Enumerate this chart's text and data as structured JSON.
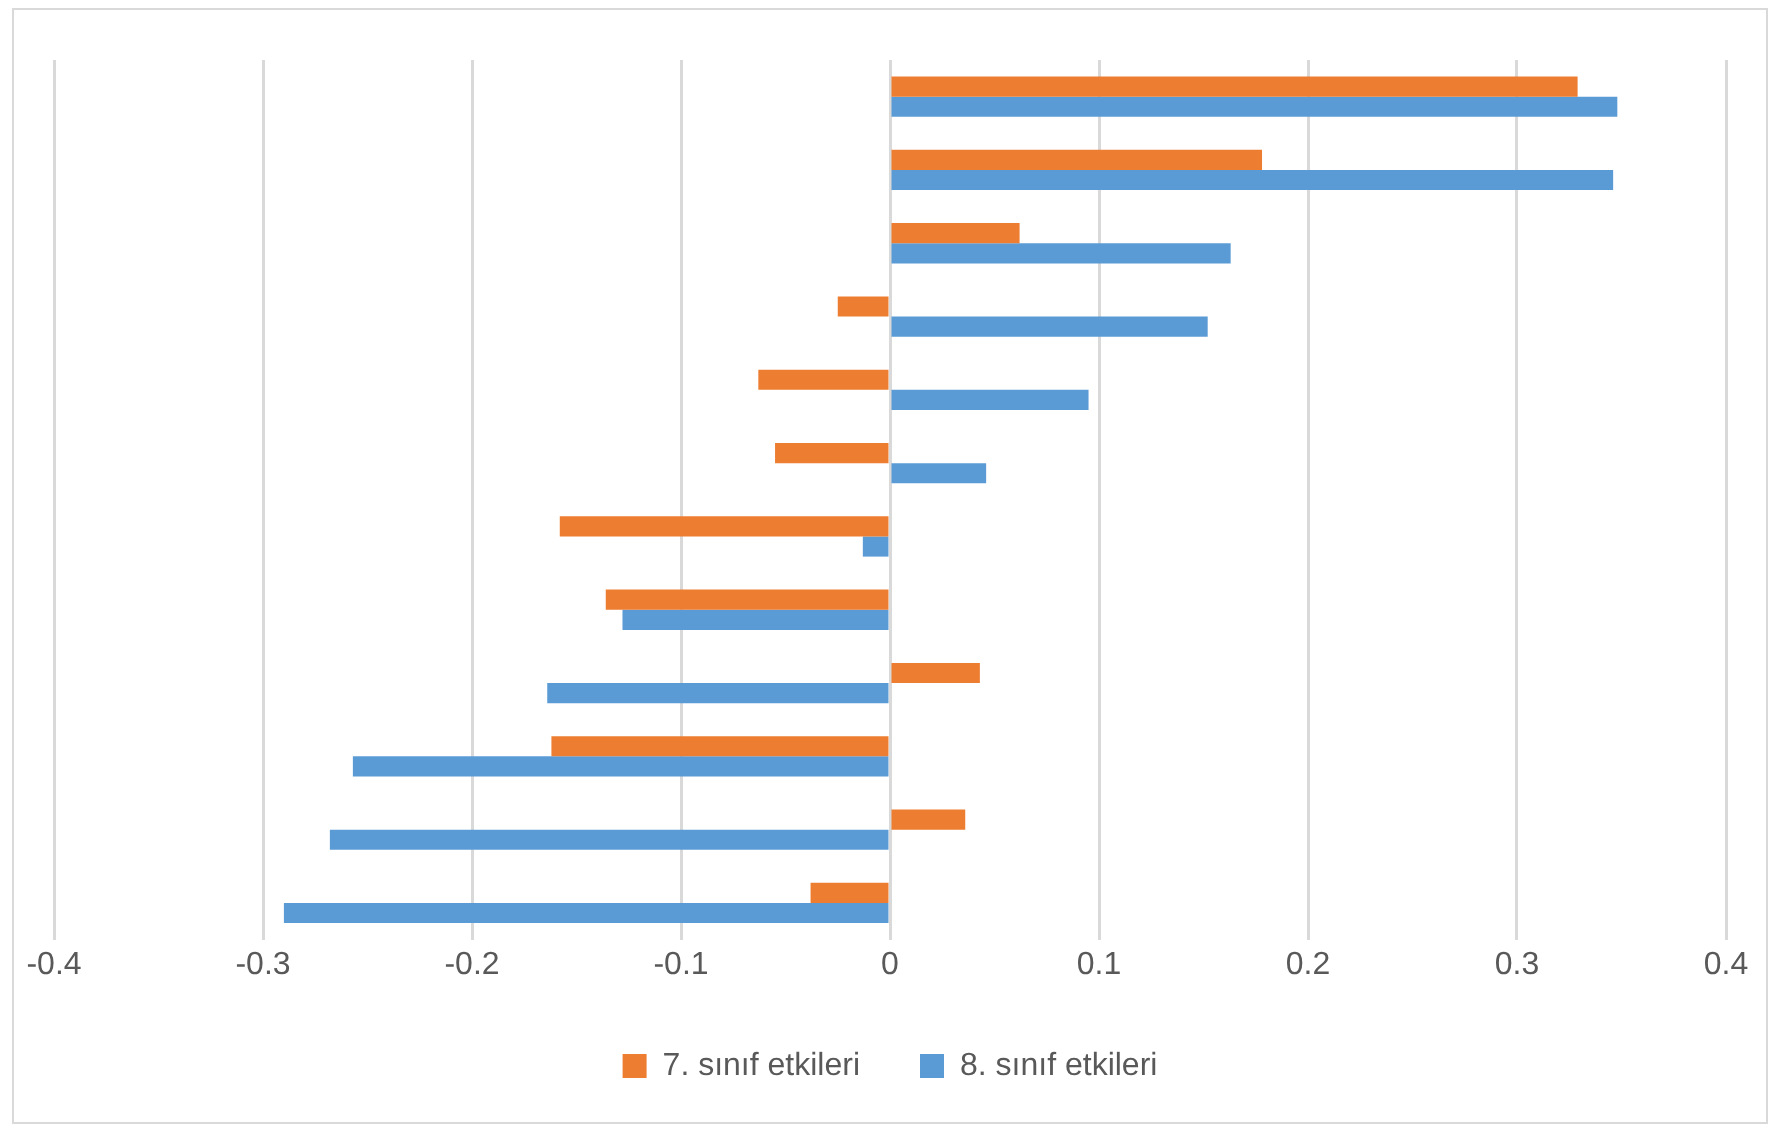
{
  "chart_data": {
    "type": "bar",
    "orientation": "horizontal",
    "categories": [
      null,
      null,
      null,
      null,
      null,
      null,
      null,
      null,
      null,
      null,
      null,
      null
    ],
    "series": [
      {
        "name": "7. sınıf etkileri",
        "color": "#ed7d31",
        "values": [
          0.329,
          0.178,
          0.062,
          -0.025,
          -0.063,
          -0.055,
          -0.158,
          -0.136,
          0.043,
          -0.162,
          0.036,
          -0.038
        ]
      },
      {
        "name": "8. sınıf etkileri",
        "color": "#5b9bd5",
        "values": [
          0.348,
          0.346,
          0.163,
          0.152,
          0.095,
          0.046,
          -0.013,
          -0.128,
          -0.164,
          -0.257,
          -0.268,
          -0.29
        ]
      }
    ],
    "xlim": [
      -0.4,
      0.4
    ],
    "xticks": [
      -0.4,
      -0.3,
      -0.2,
      -0.1,
      0,
      0.1,
      0.2,
      0.3,
      0.4
    ],
    "grid": "x",
    "legend": "bottom"
  }
}
